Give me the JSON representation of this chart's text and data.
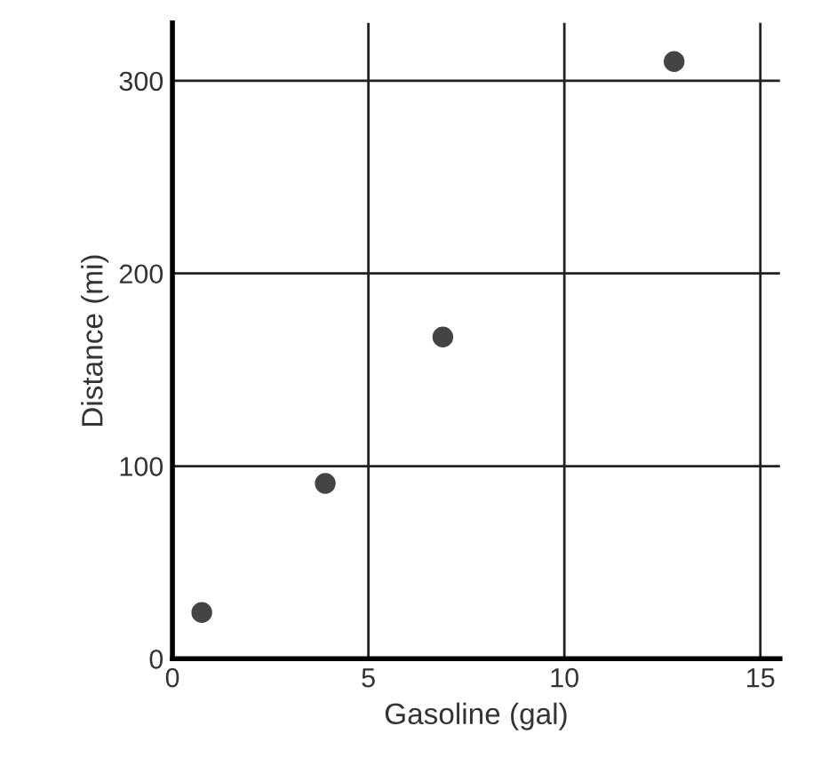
{
  "chart_data": {
    "type": "scatter",
    "xlabel": "Gasoline (gal)",
    "ylabel": "Distance (mi)",
    "x": [
      0.75,
      3.9,
      6.9,
      12.8
    ],
    "series": [
      {
        "color": "#444444",
        "values": [
          24,
          91,
          167,
          310
        ]
      }
    ],
    "xlim": [
      0,
      15.5
    ],
    "ylim": [
      0,
      330
    ],
    "xticks": [
      0,
      5,
      10,
      15
    ],
    "yticks": [
      0,
      100,
      200,
      300
    ],
    "grid": true,
    "marker": "circle"
  }
}
